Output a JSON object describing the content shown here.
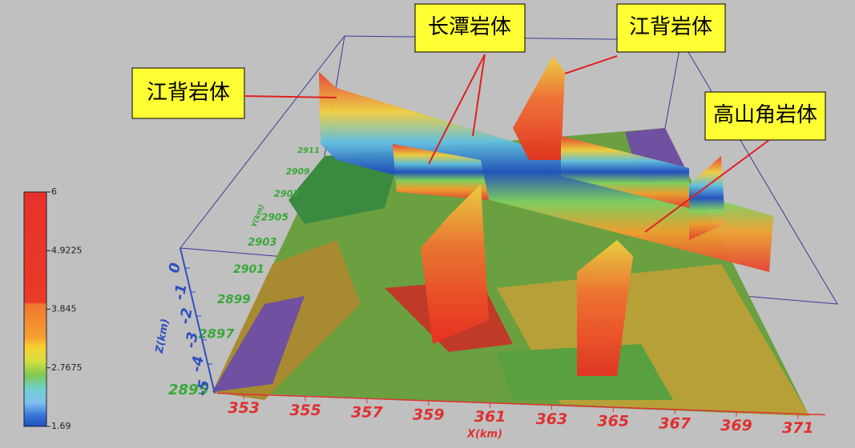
{
  "chart_data": {
    "type": "surface3d",
    "annotations": [
      "江背岩体",
      "长潭岩体",
      "江背岩体",
      "高山角岩体"
    ],
    "colorbar": {
      "ticks": [
        6,
        4.9225,
        3.845,
        2.7675,
        1.69
      ],
      "lim": [
        1.69,
        6
      ]
    },
    "xlabel": "X(km)",
    "xlim": [
      352.5,
      371.5
    ],
    "xticks": [
      353,
      355,
      357,
      359,
      361,
      363,
      365,
      367,
      369,
      371
    ],
    "ylabel": "Y(km)",
    "ylim": [
      2895,
      2911
    ],
    "yticks": [
      2895,
      2897,
      2899,
      2901,
      2903,
      2905,
      2907,
      2909,
      2911
    ],
    "zlabel": "Z(km)",
    "zlim": [
      -5,
      0
    ],
    "zticks": [
      0,
      -1,
      -2,
      -3,
      -4,
      -5
    ]
  }
}
